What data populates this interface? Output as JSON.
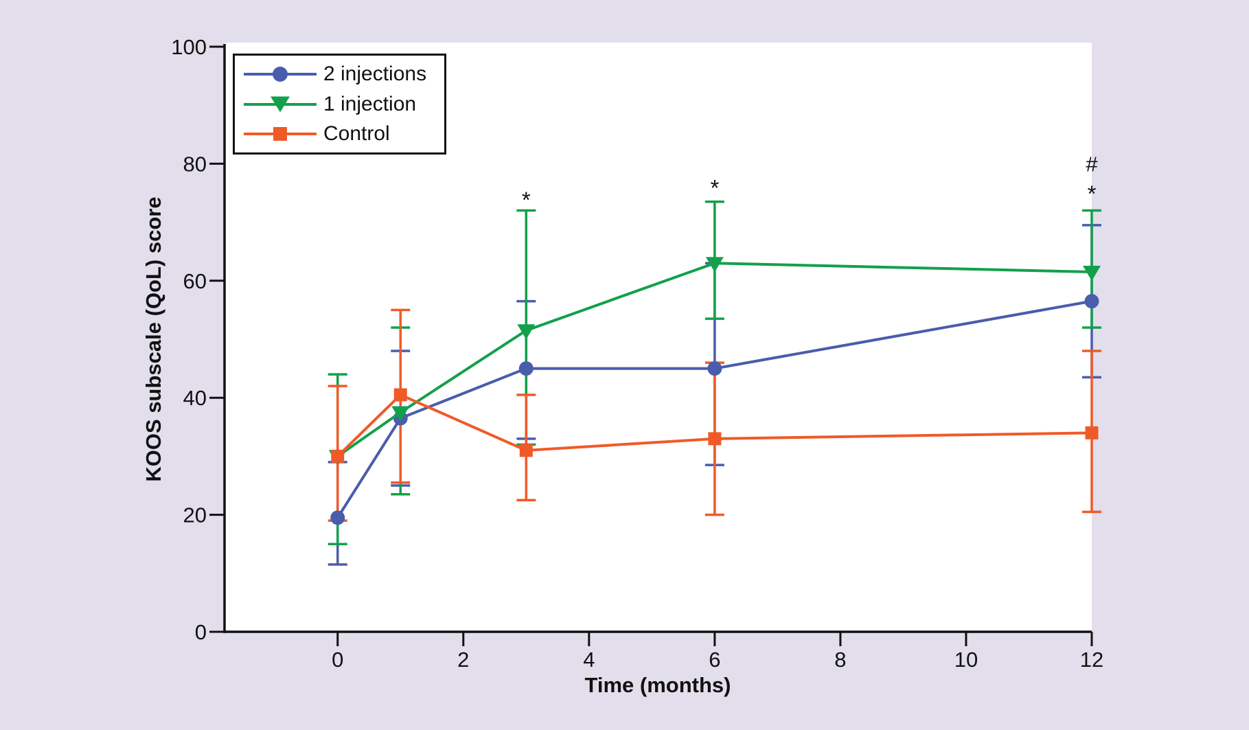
{
  "figure": {
    "background_color": "#e2deec",
    "plot_background": "#ffffff",
    "axis_color": "#111111",
    "text_color": "#111111"
  },
  "chart_data": {
    "type": "line",
    "title": "",
    "xlabel": "Time (months)",
    "ylabel": "KOOS subscale (QoL) score",
    "xlim": [
      -1.8,
      12
    ],
    "ylim": [
      0,
      100
    ],
    "x_ticks": [
      "0",
      "2",
      "4",
      "6",
      "8",
      "10",
      "12"
    ],
    "x_tick_values": [
      0,
      2,
      4,
      6,
      8,
      10,
      12
    ],
    "y_ticks": [
      "0",
      "20",
      "40",
      "60",
      "80",
      "100"
    ],
    "y_tick_values": [
      0,
      20,
      40,
      60,
      80,
      100
    ],
    "grid": false,
    "legend_position": "top-left",
    "x": [
      0,
      1,
      3,
      6,
      12
    ],
    "series": [
      {
        "name": "2 injections",
        "color": "#4a5cac",
        "marker": "circle",
        "values": [
          19.5,
          36.5,
          45,
          45,
          56.5
        ],
        "err_low": [
          11.5,
          25,
          33,
          28.5,
          43.5
        ],
        "err_high": [
          29,
          48,
          56.5,
          63,
          69.5
        ]
      },
      {
        "name": "1 injection",
        "color": "#13a04c",
        "marker": "triangle-down",
        "values": [
          30,
          37.5,
          51.5,
          63,
          61.5
        ],
        "err_low": [
          15,
          23.5,
          32,
          53.5,
          52
        ],
        "err_high": [
          44,
          52,
          72,
          73.5,
          72
        ]
      },
      {
        "name": "Control",
        "color": "#f05a28",
        "marker": "square",
        "values": [
          30,
          40.5,
          31,
          33,
          34
        ],
        "err_low": [
          19,
          25.5,
          22.5,
          20,
          20.5
        ],
        "err_high": [
          42,
          55,
          40.5,
          46,
          48
        ]
      }
    ],
    "annotations": [
      {
        "text": "*",
        "x": 3,
        "y": 74.5
      },
      {
        "text": "*",
        "x": 6,
        "y": 76.5
      },
      {
        "text": "#",
        "x": 12,
        "y": 80
      },
      {
        "text": "*",
        "x": 12,
        "y": 75.5
      }
    ]
  }
}
